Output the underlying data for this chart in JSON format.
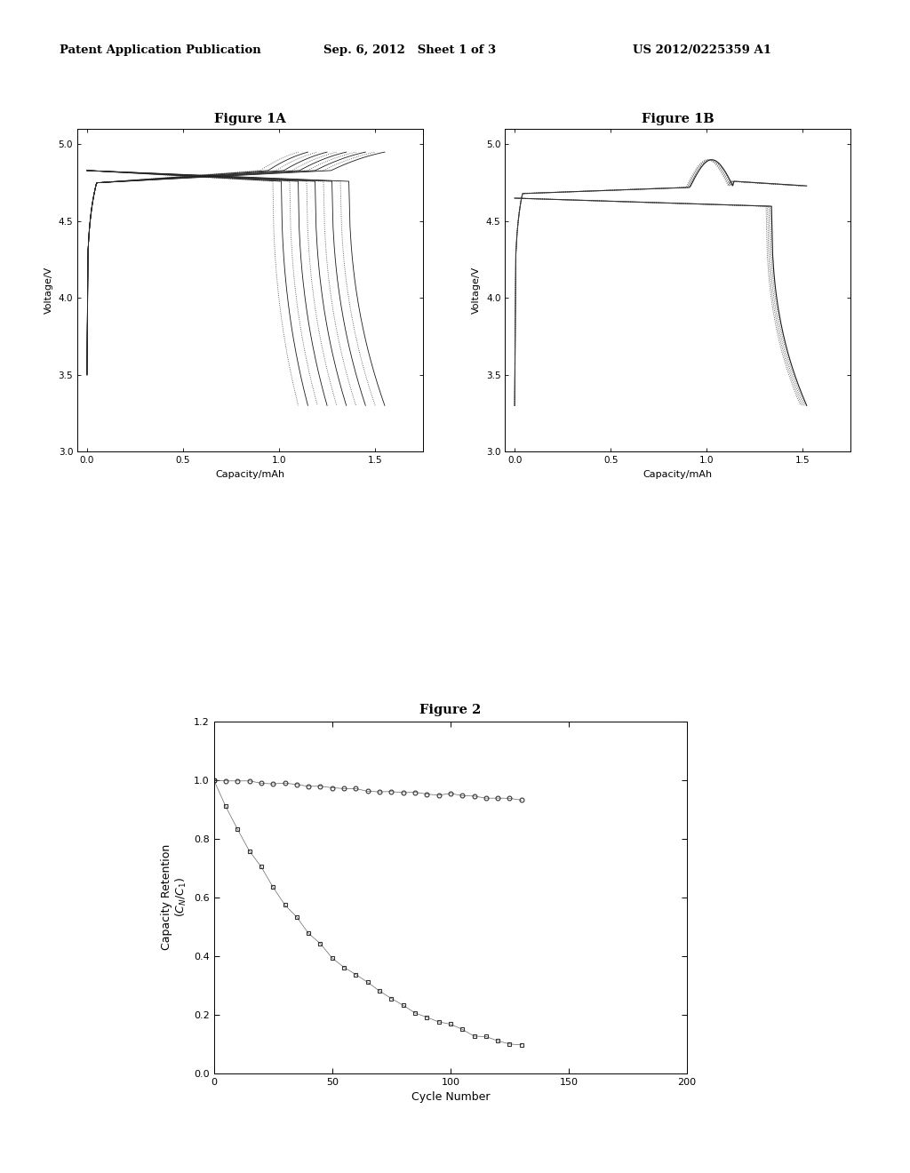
{
  "header_left": "Patent Application Publication",
  "header_mid": "Sep. 6, 2012   Sheet 1 of 3",
  "header_right": "US 2012/0225359 A1",
  "fig1a_title": "Figure 1A",
  "fig1b_title": "Figure 1B",
  "fig2_title": "Figure 2",
  "fig1_xlabel": "Capacity/mAh",
  "fig1_ylabel": "Voltage/V",
  "fig2_xlabel": "Cycle Number",
  "fig2_ylabel_line1": "Capacity Retention",
  "fig2_ylabel_line2": "(C_N/C_1)",
  "fig1a_xlim": [
    -0.05,
    1.75
  ],
  "fig1a_ylim": [
    3.0,
    5.1
  ],
  "fig1b_xlim": [
    -0.05,
    1.75
  ],
  "fig1b_ylim": [
    3.0,
    5.1
  ],
  "fig2_xlim": [
    0,
    200
  ],
  "fig2_ylim": [
    0,
    1.2
  ],
  "fig1a_xticks": [
    0,
    0.5,
    1,
    1.5
  ],
  "fig1a_yticks": [
    3,
    3.5,
    4,
    4.5,
    5
  ],
  "fig1b_xticks": [
    0,
    0.5,
    1,
    1.5
  ],
  "fig1b_yticks": [
    3,
    3.5,
    4,
    4.5,
    5
  ],
  "fig2_xticks": [
    0,
    50,
    100,
    150,
    200
  ],
  "fig2_yticks": [
    0,
    0.2,
    0.4,
    0.6,
    0.8,
    1.0,
    1.2
  ],
  "num_cycles_1a": 10,
  "num_cycles_1b": 5,
  "background_color": "#ffffff"
}
